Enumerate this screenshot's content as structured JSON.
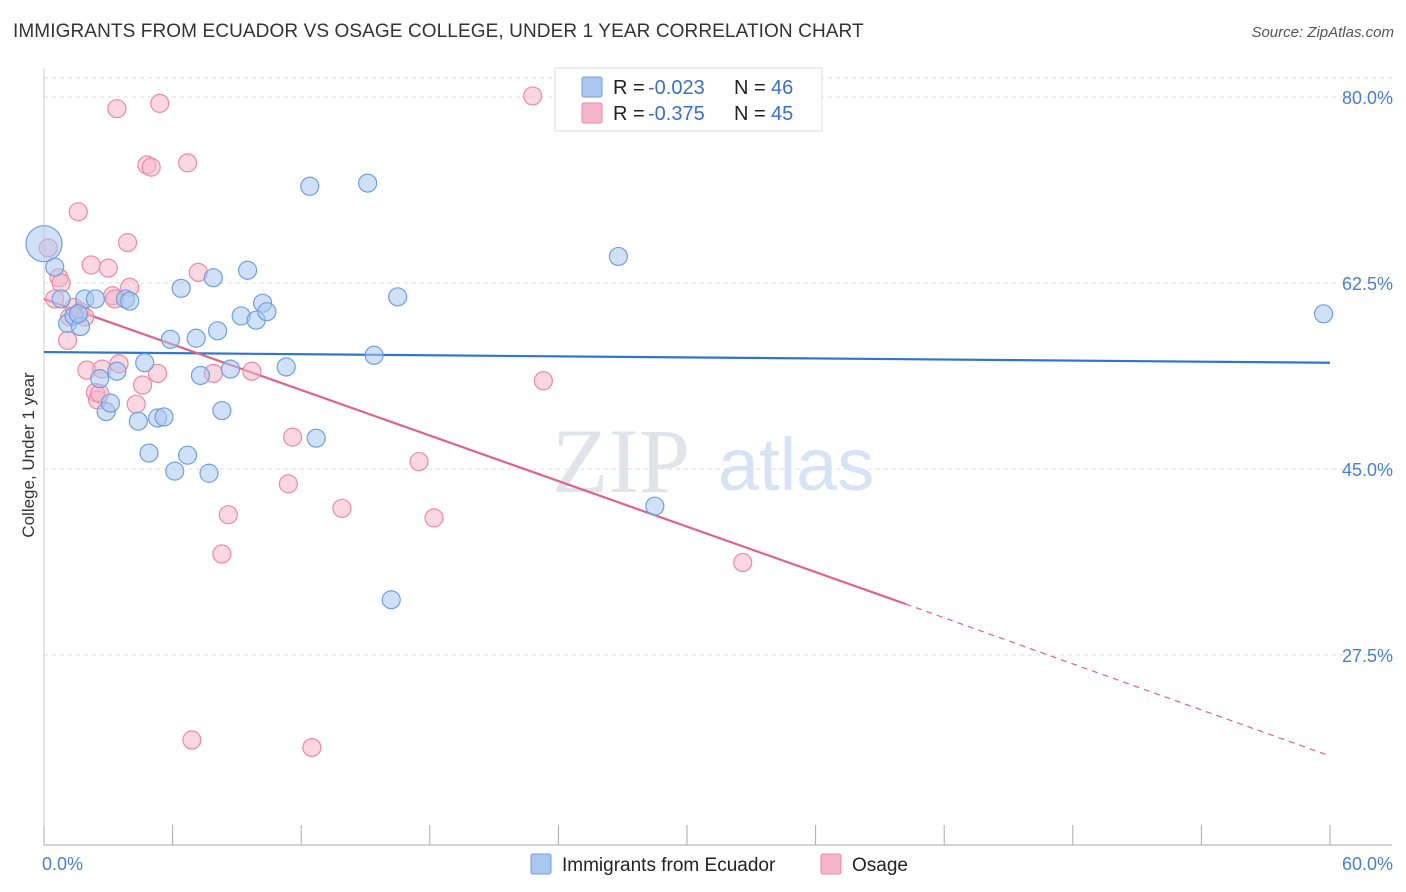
{
  "header": {
    "title": "IMMIGRANTS FROM ECUADOR VS OSAGE COLLEGE, UNDER 1 YEAR CORRELATION CHART",
    "source": "Source: ZipAtlas.com"
  },
  "watermark": {
    "zip": "ZIP",
    "atlas": "atlas"
  },
  "colors": {
    "blue_fill": "#a9c6ef",
    "blue_stroke": "#6f9fe0",
    "blue_line": "#2f74cf",
    "pink_fill": "#f5b6c9",
    "pink_stroke": "#e98aa8",
    "pink_line": "#e0608e",
    "tick_label": "#4a7fd0",
    "grid": "#dddddd"
  },
  "legend": {
    "rows": [
      {
        "r_label": "R =",
        "r_value": "-0.023",
        "n_label": "N =",
        "n_value": "46"
      },
      {
        "r_label": "R =",
        "r_value": "-0.375",
        "n_label": "N =",
        "n_value": "45"
      }
    ]
  },
  "chart_data": {
    "type": "scatter",
    "title": "IMMIGRANTS FROM ECUADOR VS OSAGE COLLEGE, UNDER 1 YEAR CORRELATION CHART",
    "xlabel": "",
    "ylabel": "College, Under 1 year",
    "xlim": [
      0,
      60
    ],
    "ylim": [
      10,
      83
    ],
    "x_tick_labels": [
      {
        "value": 0,
        "label": "0.0%"
      },
      {
        "value": 60,
        "label": "60.0%"
      }
    ],
    "y_tick_labels": [
      {
        "value": 80,
        "label": "80.0%"
      },
      {
        "value": 62.5,
        "label": "62.5%"
      },
      {
        "value": 45,
        "label": "45.0%"
      },
      {
        "value": 27.5,
        "label": "27.5%"
      }
    ],
    "x_minor_ticks": [
      0,
      6,
      12,
      18,
      24,
      30,
      36,
      42,
      48,
      54,
      60
    ],
    "series": [
      {
        "name": "Immigrants from Ecuador",
        "color": "#a9c6ef",
        "r": -0.023,
        "n": 46,
        "trend": {
          "x0": 0,
          "y0": 56.0,
          "x1": 60,
          "y1": 55.0
        },
        "points": [
          [
            0.0,
            66.2,
            "big"
          ],
          [
            0.5,
            64.0
          ],
          [
            0.8,
            61.0
          ],
          [
            1.1,
            58.7
          ],
          [
            1.4,
            59.4
          ],
          [
            1.7,
            58.4
          ],
          [
            1.9,
            61.0
          ],
          [
            2.4,
            61.0
          ],
          [
            2.6,
            53.5
          ],
          [
            2.9,
            50.4
          ],
          [
            3.1,
            51.2
          ],
          [
            3.4,
            54.2
          ],
          [
            3.8,
            61.0
          ],
          [
            4.0,
            60.8
          ],
          [
            4.4,
            49.5
          ],
          [
            4.7,
            55.0
          ],
          [
            4.9,
            46.5
          ],
          [
            5.3,
            49.8
          ],
          [
            5.6,
            49.9
          ],
          [
            5.9,
            57.2
          ],
          [
            6.1,
            44.8
          ],
          [
            6.4,
            62.0
          ],
          [
            6.7,
            46.3
          ],
          [
            7.1,
            57.3
          ],
          [
            7.3,
            53.8
          ],
          [
            7.7,
            44.6
          ],
          [
            7.9,
            63.0
          ],
          [
            8.1,
            58.0
          ],
          [
            8.3,
            50.5
          ],
          [
            8.7,
            54.4
          ],
          [
            9.2,
            59.4
          ],
          [
            9.5,
            63.7
          ],
          [
            9.9,
            59.0
          ],
          [
            10.2,
            60.6
          ],
          [
            10.4,
            59.8
          ],
          [
            11.3,
            54.6
          ],
          [
            12.4,
            71.6
          ],
          [
            12.7,
            47.9
          ],
          [
            15.1,
            71.9
          ],
          [
            15.4,
            55.7
          ],
          [
            16.2,
            32.7
          ],
          [
            16.5,
            61.2
          ],
          [
            26.8,
            65.0
          ],
          [
            28.5,
            41.5
          ],
          [
            59.7,
            59.6
          ],
          [
            1.6,
            59.6
          ]
        ]
      },
      {
        "name": "Osage",
        "color": "#f5b6c9",
        "r": -0.375,
        "n": 45,
        "trend": {
          "x0": 0,
          "y0": 61.0,
          "x1": 40.2,
          "y1": 32.3,
          "dash_to": {
            "x": 60,
            "y": 18.0
          }
        },
        "points": [
          [
            0.2,
            65.8
          ],
          [
            0.5,
            61.0
          ],
          [
            0.7,
            63.0
          ],
          [
            0.8,
            62.5
          ],
          [
            1.1,
            57.1
          ],
          [
            1.2,
            59.3
          ],
          [
            1.4,
            60.2
          ],
          [
            1.6,
            69.2
          ],
          [
            1.7,
            59.8
          ],
          [
            1.9,
            59.3
          ],
          [
            2.0,
            54.3
          ],
          [
            2.2,
            64.2
          ],
          [
            2.4,
            52.2
          ],
          [
            2.5,
            51.5
          ],
          [
            2.6,
            52.1
          ],
          [
            2.7,
            54.4
          ],
          [
            3.0,
            63.9
          ],
          [
            3.2,
            61.3
          ],
          [
            3.4,
            78.9
          ],
          [
            3.5,
            54.9
          ],
          [
            3.9,
            66.3
          ],
          [
            4.0,
            62.1
          ],
          [
            4.3,
            51.1
          ],
          [
            4.6,
            52.9
          ],
          [
            4.8,
            73.6
          ],
          [
            5.0,
            73.4
          ],
          [
            5.3,
            54.0
          ],
          [
            5.4,
            79.4
          ],
          [
            6.7,
            73.8
          ],
          [
            6.9,
            19.5
          ],
          [
            7.2,
            63.5
          ],
          [
            7.9,
            54.0
          ],
          [
            8.3,
            37.0
          ],
          [
            8.6,
            40.7
          ],
          [
            9.7,
            54.2
          ],
          [
            11.4,
            43.6
          ],
          [
            11.6,
            48.0
          ],
          [
            12.5,
            18.8
          ],
          [
            13.9,
            41.3
          ],
          [
            17.5,
            45.7
          ],
          [
            18.2,
            40.4
          ],
          [
            22.8,
            80.1
          ],
          [
            23.3,
            53.3
          ],
          [
            32.6,
            36.2
          ],
          [
            3.3,
            61.0
          ]
        ]
      }
    ]
  },
  "bottom_legend": {
    "items": [
      {
        "label": "Immigrants from Ecuador"
      },
      {
        "label": "Osage"
      }
    ]
  }
}
